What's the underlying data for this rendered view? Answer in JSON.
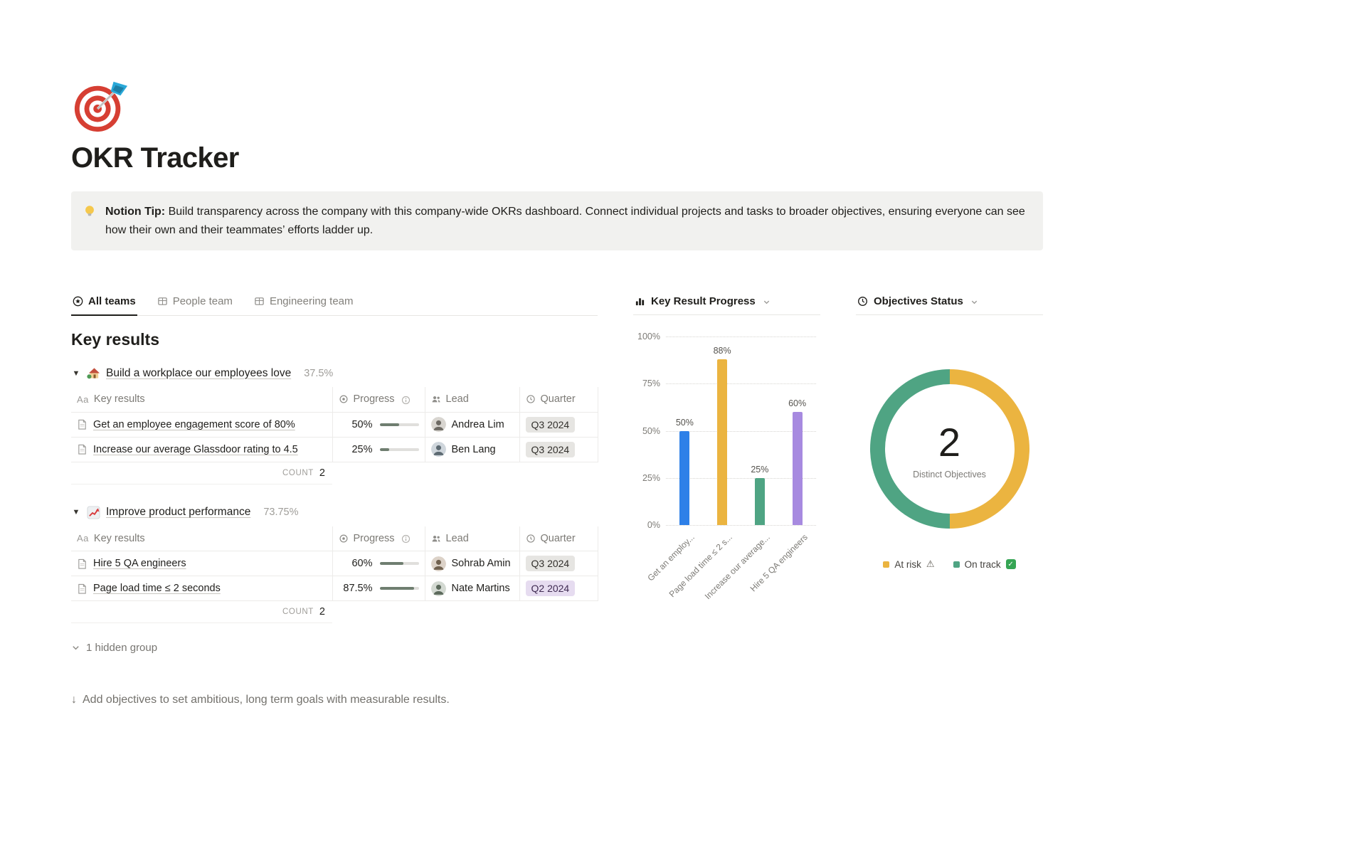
{
  "page": {
    "title": "OKR Tracker"
  },
  "callout": {
    "label_bold": "Notion Tip:",
    "text": "Build transparency across the company with this company-wide OKRs dashboard. Connect individual projects and tasks to broader objectives, ensuring everyone can see how their own and their teammates’ efforts ladder up."
  },
  "tabs": [
    {
      "label": "All teams",
      "active": true
    },
    {
      "label": "People team",
      "active": false
    },
    {
      "label": "Engineering team",
      "active": false
    }
  ],
  "key_results": {
    "heading": "Key results",
    "columns": {
      "name": "Key results",
      "progress": "Progress",
      "lead": "Lead",
      "quarter": "Quarter"
    },
    "count_label": "COUNT",
    "groups": [
      {
        "title": "Build a workplace our employees love",
        "percent": "37.5%",
        "count": "2",
        "rows": [
          {
            "name": "Get an employee engagement score of 80%",
            "progress_label": "50%",
            "progress_value": 50,
            "lead": "Andrea Lim",
            "quarter": "Q3 2024",
            "quarter_style": "gray"
          },
          {
            "name": "Increase our average Glassdoor rating to 4.5",
            "progress_label": "25%",
            "progress_value": 25,
            "lead": "Ben Lang",
            "quarter": "Q3 2024",
            "quarter_style": "gray"
          }
        ]
      },
      {
        "title": "Improve product performance",
        "percent": "73.75%",
        "count": "2",
        "rows": [
          {
            "name": "Hire 5 QA engineers",
            "progress_label": "60%",
            "progress_value": 60,
            "lead": "Sohrab Amin",
            "quarter": "Q3 2024",
            "quarter_style": "gray"
          },
          {
            "name": "Page load time ≤ 2 seconds",
            "progress_label": "87.5%",
            "progress_value": 87.5,
            "lead": "Nate Martins",
            "quarter": "Q2 2024",
            "quarter_style": "purple"
          }
        ]
      }
    ],
    "hidden_group_label": "1 hidden group"
  },
  "chart_data": [
    {
      "type": "bar",
      "title": "Key Result Progress",
      "ylim": [
        0,
        100
      ],
      "y_ticks": [
        "100%",
        "75%",
        "50%",
        "25%",
        "0%"
      ],
      "categories": [
        "Get an employ...",
        "Page load time ≤ 2 s...",
        "Increase our average...",
        "Hire 5 QA engineers"
      ],
      "values": [
        50,
        88,
        25,
        60
      ],
      "value_labels": [
        "50%",
        "88%",
        "25%",
        "60%"
      ],
      "colors": [
        "#2e80e8",
        "#ebb440",
        "#4fa483",
        "#a78ae0"
      ],
      "grid": "dotted-horizontal",
      "legend": "none"
    },
    {
      "type": "donut",
      "title": "Objectives Status",
      "center_value": "2",
      "center_label": "Distinct Objectives",
      "slices": [
        {
          "label": "At risk",
          "icon": "⚠",
          "value": 1,
          "color": "#ebb440"
        },
        {
          "label": "On track",
          "icon": "✓",
          "value": 1,
          "color": "#4fa483"
        }
      ],
      "legend_position": "bottom"
    }
  ],
  "footer": {
    "icon": "↓",
    "text": "Add objectives to set ambitious, long term goals with measurable results."
  },
  "icons": {
    "page_icon": "dart-target",
    "callout_icon": "light-bulb",
    "group_icons": [
      "house-with-garden",
      "chart-increasing"
    ],
    "tab_icons": [
      "target-view",
      "table-view",
      "table-view"
    ],
    "column_icons": {
      "name": "Aa",
      "progress": "ring",
      "lead": "people",
      "quarter": "clock"
    },
    "chart_header_icons": [
      "bar-chart",
      "clock-status"
    ]
  },
  "colors": {
    "progress_fill": "#6f7e70",
    "badge_gray_bg": "#e6e5e2",
    "badge_purple_bg": "#e6dcf0",
    "callout_bg": "#f1f1ef",
    "tab_active_text": "#1f1e1b",
    "muted_text": "#7c7a75"
  }
}
